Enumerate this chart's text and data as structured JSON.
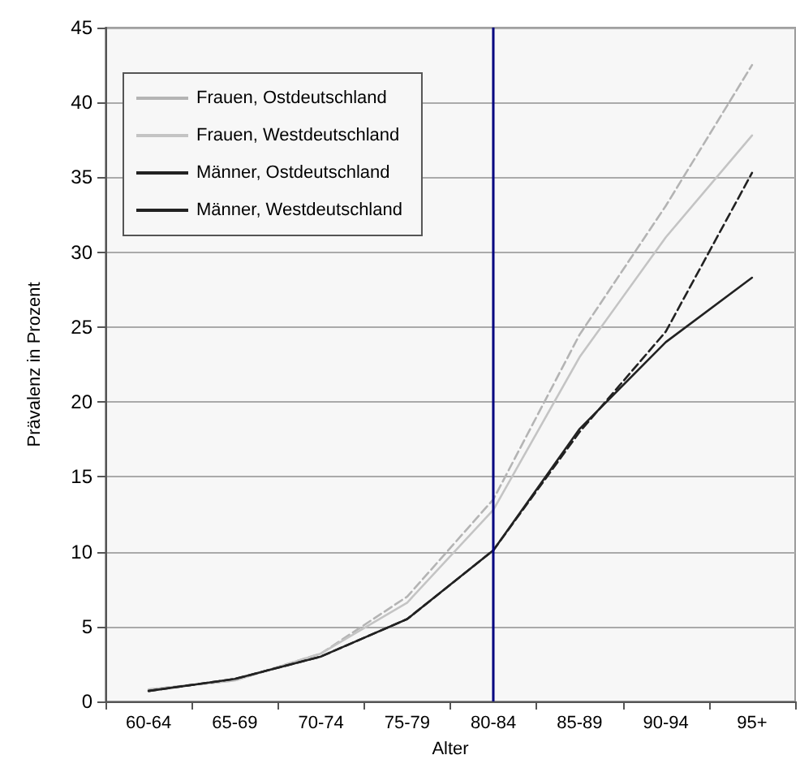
{
  "chart_data": {
    "type": "line",
    "xlabel": "Alter",
    "ylabel": "Prävalenz in Prozent",
    "categories": [
      "60-64",
      "65-69",
      "70-74",
      "75-79",
      "80-84",
      "85-89",
      "90-94",
      "95+"
    ],
    "series": [
      {
        "name": "Frauen, Ostdeutschland",
        "color": "#b4b4b4",
        "line_style": "dashed",
        "values": [
          0.8,
          1.4,
          3.2,
          7.0,
          13.5,
          24.5,
          33.1,
          42.5
        ]
      },
      {
        "name": "Frauen, Westdeutschland",
        "color": "#c4c4c4",
        "line_style": "solid",
        "values": [
          0.8,
          1.4,
          3.2,
          6.6,
          12.8,
          23.0,
          31.0,
          37.8
        ]
      },
      {
        "name": "Männer, Ostdeutschland",
        "color": "#222222",
        "line_style": "dashed",
        "values": [
          0.7,
          1.5,
          3.0,
          5.5,
          10.1,
          18.0,
          24.7,
          35.3
        ]
      },
      {
        "name": "Männer, Westdeutschland",
        "color": "#222222",
        "line_style": "solid",
        "values": [
          0.7,
          1.5,
          3.0,
          5.5,
          10.1,
          18.2,
          24.0,
          28.3
        ]
      }
    ],
    "ylim": [
      0,
      45
    ],
    "yticks": [
      0,
      5,
      10,
      15,
      20,
      25,
      30,
      35,
      40,
      45
    ],
    "ref_lines": [
      {
        "axis": "x",
        "value": "80-84",
        "color": "#000080"
      }
    ],
    "grid": "y",
    "legend": "top left",
    "marker": "none"
  }
}
